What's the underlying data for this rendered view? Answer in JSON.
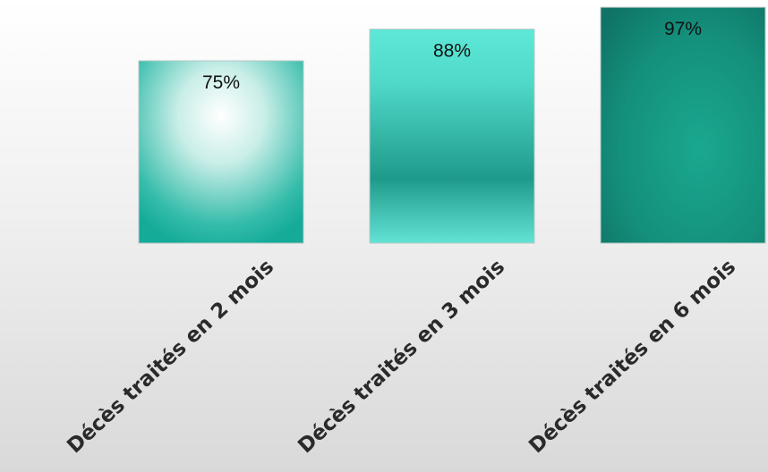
{
  "chart_data": {
    "type": "bar",
    "categories": [
      "Décès traités en 2 mois",
      "Décès traités en 3 mois",
      "Décès traités en 6 mois"
    ],
    "values": [
      75,
      88,
      97
    ],
    "value_labels": [
      "75%",
      "88%",
      "97%"
    ],
    "ylim": [
      0,
      100
    ],
    "unit": "%",
    "grid": false,
    "legend": "none",
    "colors": [
      "#1bb3a0",
      "#4fe0d0",
      "#117a6c"
    ]
  }
}
